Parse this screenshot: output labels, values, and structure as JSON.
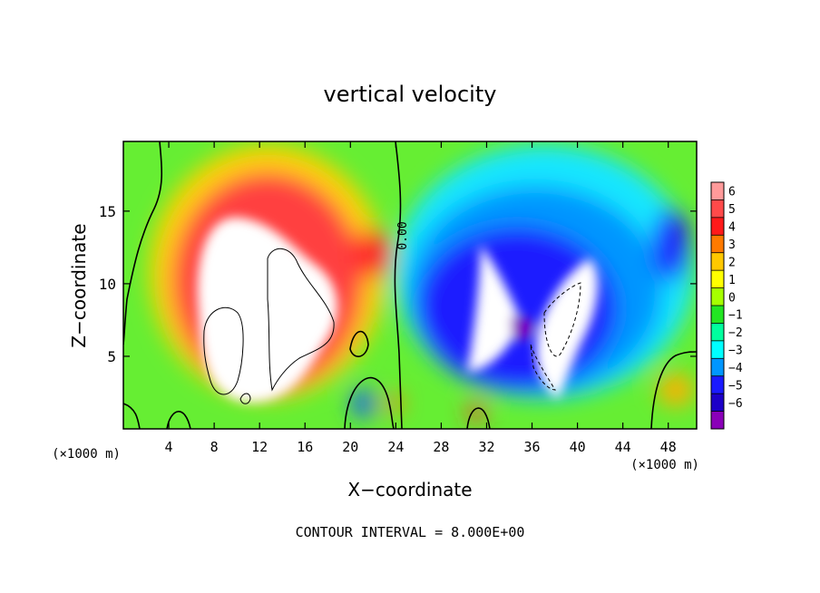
{
  "chart_data": {
    "type": "heatmap",
    "title": "vertical velocity",
    "xlabel": "X−coordinate",
    "ylabel": "Z−coordinate",
    "x_unit_left": "(×1000 m)",
    "x_unit_right": "(×1000 m)",
    "footer": "CONTOUR INTERVAL = 8.000E+00",
    "xlim": [
      0,
      50.5
    ],
    "ylim": [
      0,
      19.8
    ],
    "xticks": [
      4,
      8,
      12,
      16,
      20,
      24,
      28,
      32,
      36,
      40,
      44,
      48
    ],
    "xtick_labels": [
      "4",
      "8",
      "12",
      "16",
      "20",
      "24",
      "28",
      "32",
      "36",
      "40",
      "44",
      "48"
    ],
    "yticks": [
      5,
      10,
      15
    ],
    "ytick_labels": [
      "5",
      "10",
      "15"
    ],
    "contour_label": "0.00",
    "colorbar": {
      "labels": [
        "6",
        "5",
        "4",
        "3",
        "2",
        "1",
        "0",
        "−1",
        "−2",
        "−3",
        "−4",
        "−5",
        "−6"
      ],
      "values": [
        6,
        5,
        4,
        3,
        2,
        1,
        0,
        -1,
        -2,
        -3,
        -4,
        -5,
        -6
      ],
      "colors": [
        "#ff9a9a",
        "#ff4a4a",
        "#ff1a1a",
        "#ff7a00",
        "#ffc800",
        "#ffff00",
        "#a6ff00",
        "#22e622",
        "#00ff9e",
        "#00ffff",
        "#0096ff",
        "#1a1aff",
        "#1c00c8",
        "#8a00b8"
      ]
    },
    "features": [
      {
        "kind": "updraft",
        "x": [
          6,
          20
        ],
        "z": [
          1,
          17
        ],
        "peak": "above 6"
      },
      {
        "kind": "downdraft",
        "x": [
          24,
          50
        ],
        "z": [
          1,
          17
        ],
        "peak": "below -6"
      }
    ],
    "grid": false
  }
}
